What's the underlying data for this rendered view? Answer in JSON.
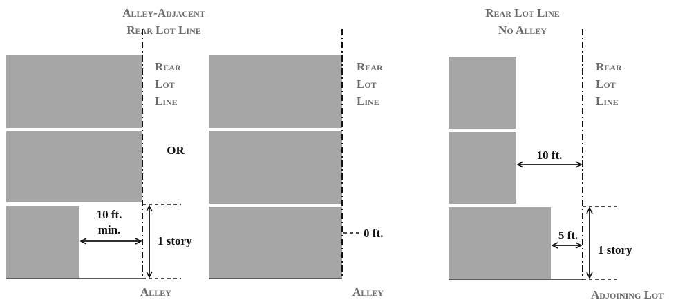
{
  "headings": {
    "left": [
      "Alley-Adjacent",
      "Rear Lot Line"
    ],
    "right": [
      "Rear Lot Line",
      "No Alley"
    ]
  },
  "labels": {
    "rear_lot_line_1": [
      "Rear",
      "Lot",
      "Line"
    ],
    "rear_lot_line_2": [
      "Rear",
      "Lot",
      "Line"
    ],
    "rear_lot_line_3": [
      "Rear",
      "Lot",
      "Line"
    ],
    "or": "OR",
    "setback_10_min": [
      "10 ft.",
      "min."
    ],
    "one_story_left": "1 story",
    "zero_ft": "0 ft.",
    "setback_10_right": "10 ft.",
    "setback_5": "5 ft.",
    "one_story_right": "1 story",
    "alley_left": "Alley",
    "alley_middle": "Alley",
    "adjoining_lot": "Adjoining Lot"
  }
}
